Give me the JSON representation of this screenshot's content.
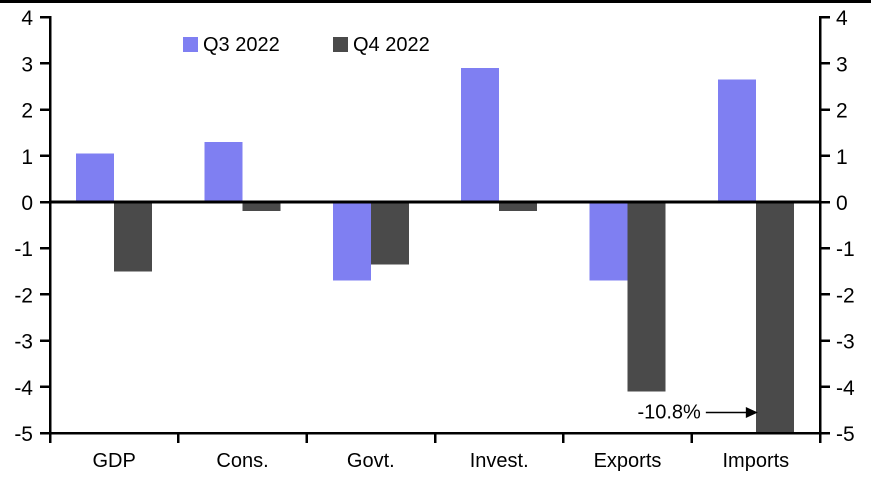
{
  "chart_data": {
    "type": "bar",
    "title": "",
    "categories": [
      "GDP",
      "Cons.",
      "Govt.",
      "Invest.",
      "Exports",
      "Imports"
    ],
    "series": [
      {
        "name": "Q3 2022",
        "color": "#7f7ff2",
        "values": [
          1.05,
          1.3,
          -1.7,
          2.9,
          -1.7,
          2.65
        ]
      },
      {
        "name": "Q4 2022",
        "color": "#4a4a4a",
        "values": [
          -1.5,
          -0.2,
          -1.35,
          -0.2,
          -4.1,
          -10.8
        ]
      }
    ],
    "ylim": [
      -5,
      4
    ],
    "yticks": [
      4,
      3,
      2,
      1,
      0,
      -1,
      -2,
      -3,
      -4,
      -5
    ],
    "y_axis_labels": "both-sides",
    "grid": false,
    "legend_position": "top-center",
    "annotation": {
      "text": "-10.8%",
      "category": "Imports",
      "series": "Q4 2022",
      "bar_clipped_at_axis_min": true
    },
    "colors": {
      "axis": "#000000",
      "background": "#ffffff",
      "top_border": "#000000"
    }
  }
}
